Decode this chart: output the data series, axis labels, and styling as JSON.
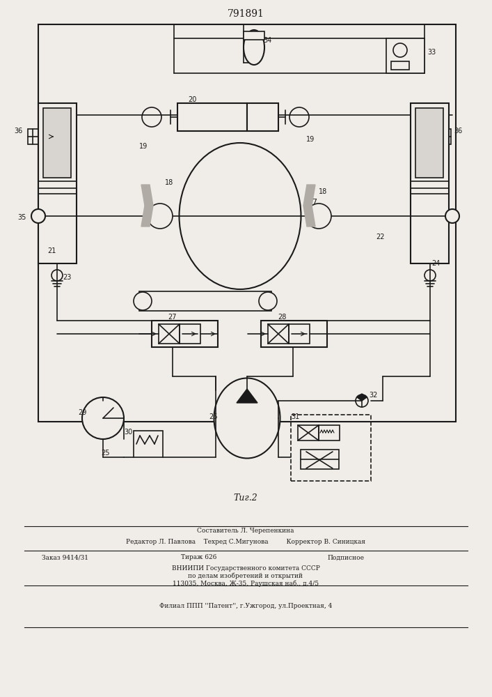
{
  "title": "791891",
  "fig_label": "Τиг.2",
  "background_color": "#f0ede8",
  "line_color": "#1a1a1a",
  "text_color": "#1a1a1a",
  "footer_line1": "Составитель Л. Черепенкина",
  "footer_line2": "Редактор Л. Павлова    Техред С.Мигунова         Корректор В. Синицкая",
  "footer_line3a": "Заказ 9414/31",
  "footer_line3b": "Тираж 626",
  "footer_line3c": "Подписное",
  "footer_line4": "ВНИИПИ Государственного комитета СССР",
  "footer_line5": "по делам изобретений и открытий",
  "footer_line6": "113035, Москва, Ж-35, Раушская наб., д.4/5",
  "footer_line7": "Филиал ППП ''Патент'', г.Ужгород, ул.Проектная, 4"
}
